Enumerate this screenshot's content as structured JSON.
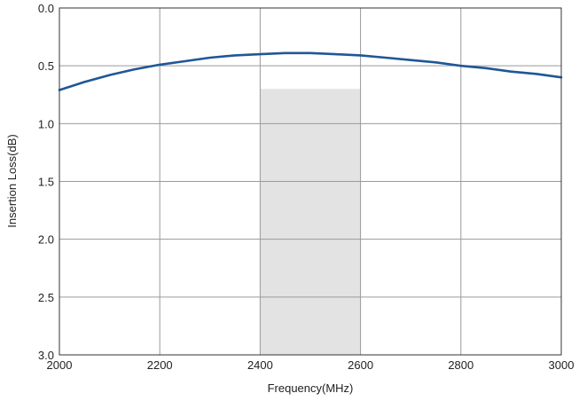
{
  "chart_data": {
    "type": "line",
    "title": "",
    "xlabel": "Frequency(MHz)",
    "ylabel": "Insertion Loss(dB)",
    "xlim": [
      2000,
      3000
    ],
    "ylim": [
      0.0,
      3.0
    ],
    "y_inverted": true,
    "grid": true,
    "x_ticks": [
      "2000",
      "2200",
      "2400",
      "2600",
      "2800",
      "3000"
    ],
    "y_ticks": [
      "0.0",
      "0.5",
      "1.0",
      "1.5",
      "2.0",
      "2.5",
      "3.0"
    ],
    "x_tick_values": [
      2000,
      2200,
      2400,
      2600,
      2800,
      3000
    ],
    "y_tick_values": [
      0.0,
      0.5,
      1.0,
      1.5,
      2.0,
      2.5,
      3.0
    ],
    "shaded_region": {
      "x": [
        2400,
        2600
      ],
      "y": [
        0.7,
        3.0
      ],
      "color": "#e3e3e3"
    },
    "series": [
      {
        "color": "#1f5797",
        "x": [
          2000,
          2050,
          2100,
          2150,
          2200,
          2250,
          2300,
          2350,
          2400,
          2450,
          2500,
          2550,
          2600,
          2650,
          2700,
          2750,
          2800,
          2850,
          2900,
          2950,
          3000
        ],
        "y": [
          0.71,
          0.64,
          0.58,
          0.53,
          0.49,
          0.46,
          0.43,
          0.41,
          0.4,
          0.39,
          0.39,
          0.4,
          0.41,
          0.43,
          0.45,
          0.47,
          0.5,
          0.52,
          0.55,
          0.57,
          0.6
        ]
      }
    ]
  }
}
